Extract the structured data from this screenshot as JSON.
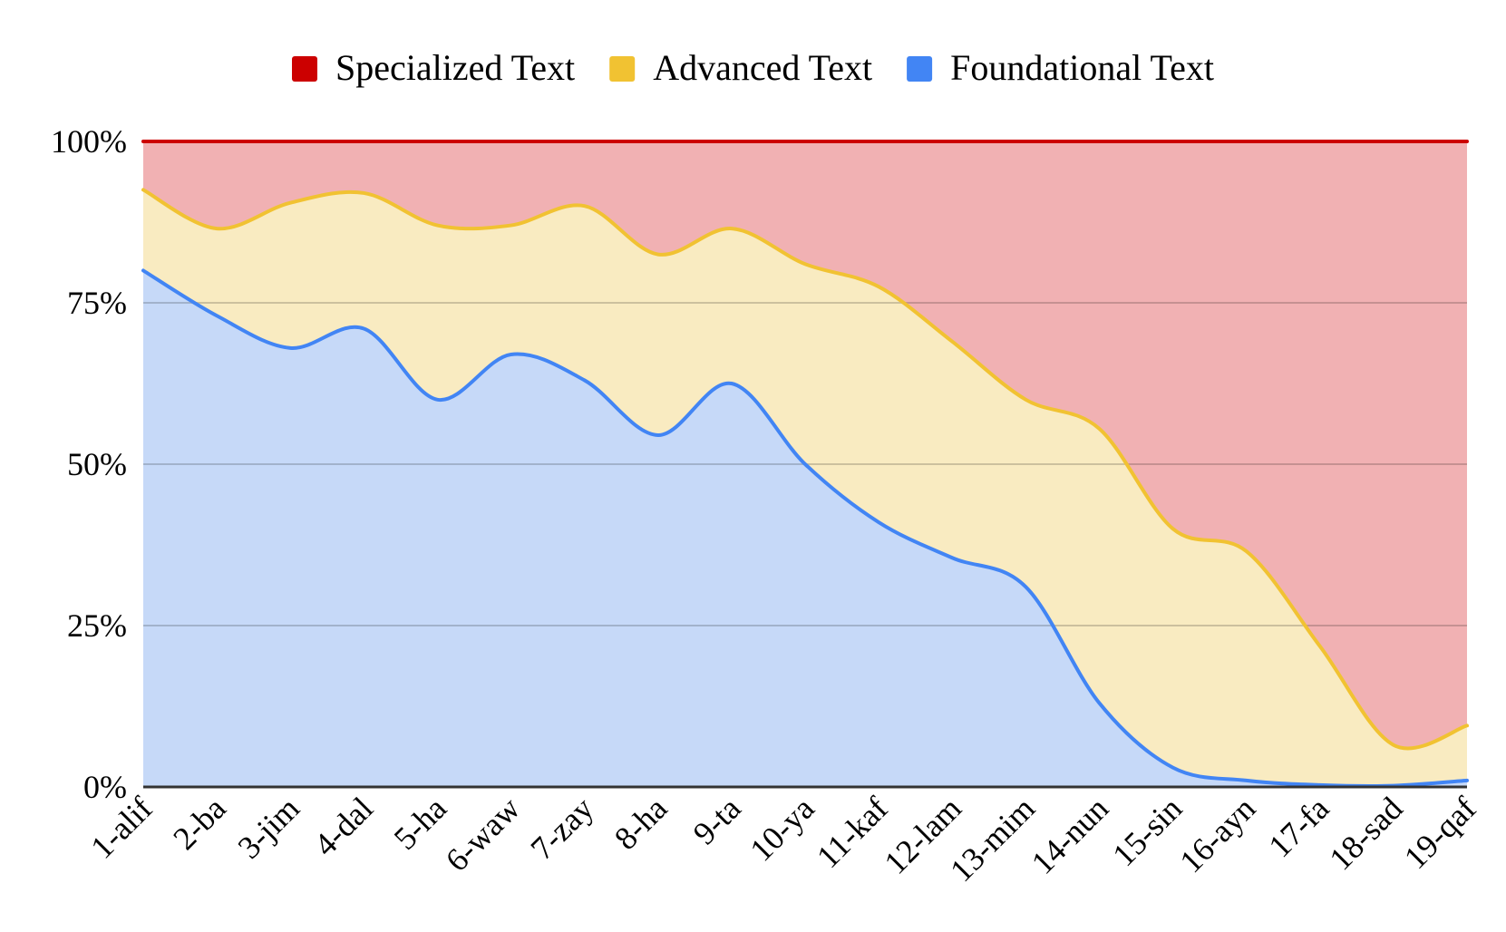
{
  "chart_data": {
    "type": "area",
    "stacked": true,
    "normalized": true,
    "categories": [
      "1-alif",
      "2-ba",
      "3-jim",
      "4-dal",
      "5-ha",
      "6-waw",
      "7-zay",
      "8-ha",
      "9-ta",
      "10-ya",
      "11-kaf",
      "12-lam",
      "13-mim",
      "14-nun",
      "15-sin",
      "16-ayn",
      "17-fa",
      "18-sad",
      "19-qaf"
    ],
    "y_ticks": [
      "0%",
      "25%",
      "50%",
      "75%",
      "100%"
    ],
    "ylim": [
      0,
      100
    ],
    "legend_position": "top",
    "series": [
      {
        "name": "Foundational Text",
        "color": "#4285f4",
        "fill": "#c6d9f8",
        "values": [
          80,
          73,
          68,
          71,
          60,
          67,
          63,
          54.5,
          62.5,
          50,
          41,
          35.5,
          31,
          13,
          3,
          1,
          0.3,
          0.2,
          1
        ]
      },
      {
        "name": "Advanced Text",
        "color": "#f1c232",
        "fill": "#f9ebc1",
        "values": [
          12.5,
          13.5,
          22.5,
          21,
          27,
          20,
          27,
          28,
          24,
          31,
          36.5,
          33.5,
          29,
          42.5,
          37,
          35.5,
          21.5,
          6.3,
          8.5
        ]
      },
      {
        "name": "Specialized Text",
        "color": "#cc0000",
        "fill": "#f1b1b3",
        "values": [
          7.5,
          13.5,
          9.5,
          8,
          13,
          13,
          10,
          17.5,
          13.5,
          19,
          22.5,
          31,
          40,
          44.5,
          60,
          63.5,
          78.2,
          93.5,
          90.5
        ]
      }
    ]
  }
}
